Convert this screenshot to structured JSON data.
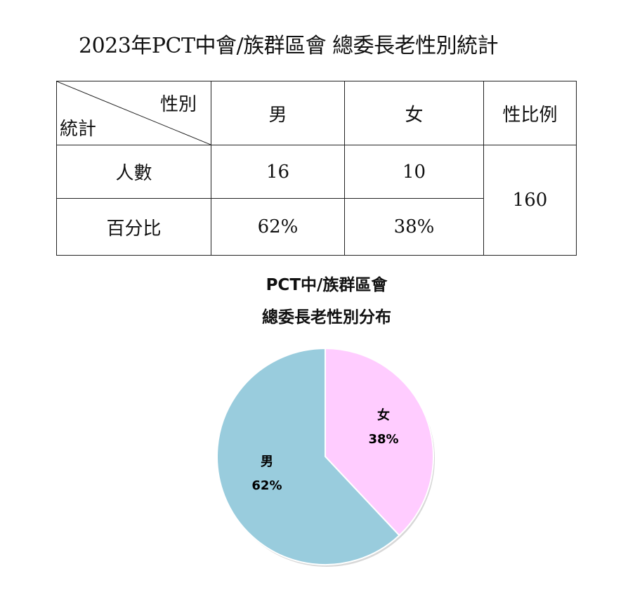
{
  "page_title": "2023年PCT中會/族群區會 總委長老性別統計",
  "table": {
    "corner_top": "性別",
    "corner_bottom": "統計",
    "headers": [
      "男",
      "女",
      "性比例"
    ],
    "rows": [
      {
        "label": "人數",
        "male": "16",
        "female": "10"
      },
      {
        "label": "百分比",
        "male": "62%",
        "female": "38%"
      }
    ],
    "sex_ratio": "160"
  },
  "chart_data": {
    "type": "pie",
    "title": "PCT中/族群區會",
    "subtitle": "總委長老性別分布",
    "categories": [
      "女",
      "男"
    ],
    "values": [
      38,
      62
    ],
    "labels": [
      "38%",
      "62%"
    ],
    "colors": [
      "#FFCCFF",
      "#99CCDD"
    ],
    "legend": "none"
  }
}
